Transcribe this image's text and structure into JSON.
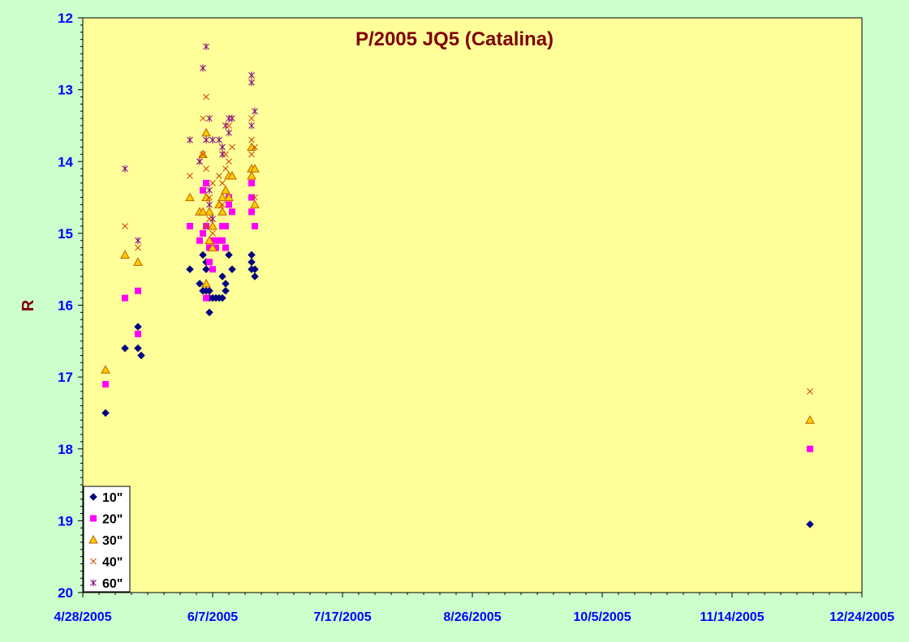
{
  "chart_data": {
    "type": "scatter",
    "title": "P/2005 JQ5 (Catalina)",
    "xlabel": "",
    "ylabel": "R",
    "x_is_date": true,
    "xlim": [
      "2005-04-28",
      "2005-12-24"
    ],
    "x_ticks": [
      "4/28/2005",
      "6/7/2005",
      "7/17/2005",
      "8/26/2005",
      "10/5/2005",
      "11/14/2005",
      "12/24/2005"
    ],
    "ylim": [
      20,
      12
    ],
    "y_inverted": true,
    "y_ticks": [
      "12",
      "13",
      "14",
      "15",
      "16",
      "17",
      "18",
      "19",
      "20"
    ],
    "grid": false,
    "legend_position": "bottom-left",
    "colors": {
      "background": "#ccffcc",
      "plot_area": "#ffff99",
      "title": "#800000",
      "axis_label": "#800000",
      "ticks": "#0000ff"
    },
    "series": [
      {
        "name": "10\"",
        "marker": "diamond",
        "color": "#000080",
        "points": [
          [
            "2005-05-05",
            17.5
          ],
          [
            "2005-05-11",
            16.6
          ],
          [
            "2005-05-15",
            16.3
          ],
          [
            "2005-05-15",
            16.6
          ],
          [
            "2005-05-16",
            16.7
          ],
          [
            "2005-05-31",
            15.5
          ],
          [
            "2005-06-03",
            15.7
          ],
          [
            "2005-06-04",
            15.3
          ],
          [
            "2005-06-04",
            15.8
          ],
          [
            "2005-06-05",
            15.4
          ],
          [
            "2005-06-05",
            15.5
          ],
          [
            "2005-06-05",
            15.8
          ],
          [
            "2005-06-06",
            15.9
          ],
          [
            "2005-06-06",
            15.8
          ],
          [
            "2005-06-06",
            16.1
          ],
          [
            "2005-06-07",
            15.9
          ],
          [
            "2005-06-08",
            15.9
          ],
          [
            "2005-06-09",
            15.9
          ],
          [
            "2005-06-10",
            15.9
          ],
          [
            "2005-06-10",
            15.6
          ],
          [
            "2005-06-11",
            15.7
          ],
          [
            "2005-06-11",
            15.8
          ],
          [
            "2005-06-12",
            15.3
          ],
          [
            "2005-06-13",
            15.5
          ],
          [
            "2005-06-19",
            15.3
          ],
          [
            "2005-06-19",
            15.4
          ],
          [
            "2005-06-19",
            15.5
          ],
          [
            "2005-06-20",
            15.5
          ],
          [
            "2005-06-20",
            15.6
          ],
          [
            "2005-12-08",
            19.05
          ]
        ]
      },
      {
        "name": "20\"",
        "marker": "square",
        "color": "#ff00ff",
        "points": [
          [
            "2005-05-05",
            17.1
          ],
          [
            "2005-05-11",
            15.9
          ],
          [
            "2005-05-15",
            15.8
          ],
          [
            "2005-05-15",
            16.4
          ],
          [
            "2005-05-31",
            14.9
          ],
          [
            "2005-06-03",
            15.1
          ],
          [
            "2005-06-04",
            14.4
          ],
          [
            "2005-06-04",
            15.0
          ],
          [
            "2005-06-05",
            14.3
          ],
          [
            "2005-06-05",
            14.9
          ],
          [
            "2005-06-05",
            15.9
          ],
          [
            "2005-06-06",
            15.2
          ],
          [
            "2005-06-06",
            15.4
          ],
          [
            "2005-06-07",
            15.5
          ],
          [
            "2005-06-07",
            15.1
          ],
          [
            "2005-06-08",
            15.2
          ],
          [
            "2005-06-09",
            15.1
          ],
          [
            "2005-06-10",
            15.1
          ],
          [
            "2005-06-10",
            14.9
          ],
          [
            "2005-06-11",
            15.2
          ],
          [
            "2005-06-11",
            14.9
          ],
          [
            "2005-06-12",
            14.5
          ],
          [
            "2005-06-12",
            14.6
          ],
          [
            "2005-06-13",
            14.7
          ],
          [
            "2005-06-19",
            14.3
          ],
          [
            "2005-06-19",
            14.5
          ],
          [
            "2005-06-19",
            14.7
          ],
          [
            "2005-06-20",
            14.9
          ],
          [
            "2005-12-08",
            18.0
          ]
        ]
      },
      {
        "name": "30\"",
        "marker": "triangle",
        "color": "#ffcc00",
        "stroke": "#c06000",
        "points": [
          [
            "2005-05-05",
            16.9
          ],
          [
            "2005-05-11",
            15.3
          ],
          [
            "2005-05-15",
            15.4
          ],
          [
            "2005-05-31",
            14.5
          ],
          [
            "2005-06-03",
            14.7
          ],
          [
            "2005-06-04",
            13.9
          ],
          [
            "2005-06-04",
            14.7
          ],
          [
            "2005-06-05",
            13.6
          ],
          [
            "2005-06-05",
            14.5
          ],
          [
            "2005-06-05",
            15.7
          ],
          [
            "2005-06-06",
            14.7
          ],
          [
            "2005-06-06",
            15.1
          ],
          [
            "2005-06-07",
            15.2
          ],
          [
            "2005-06-07",
            14.9
          ],
          [
            "2005-06-09",
            14.6
          ],
          [
            "2005-06-10",
            14.7
          ],
          [
            "2005-06-10",
            14.5
          ],
          [
            "2005-06-11",
            14.4
          ],
          [
            "2005-06-12",
            14.2
          ],
          [
            "2005-06-12",
            14.5
          ],
          [
            "2005-06-13",
            14.2
          ],
          [
            "2005-06-19",
            13.8
          ],
          [
            "2005-06-19",
            14.1
          ],
          [
            "2005-06-19",
            14.2
          ],
          [
            "2005-06-20",
            14.1
          ],
          [
            "2005-06-20",
            14.6
          ],
          [
            "2005-12-08",
            17.6
          ]
        ]
      },
      {
        "name": "40\"",
        "marker": "x",
        "color": "#cc4400",
        "points": [
          [
            "2005-05-11",
            14.9
          ],
          [
            "2005-05-15",
            15.2
          ],
          [
            "2005-05-31",
            14.2
          ],
          [
            "2005-06-03",
            14.0
          ],
          [
            "2005-06-04",
            13.4
          ],
          [
            "2005-06-04",
            13.9
          ],
          [
            "2005-06-05",
            13.1
          ],
          [
            "2005-06-05",
            14.1
          ],
          [
            "2005-06-05",
            14.9
          ],
          [
            "2005-06-06",
            14.5
          ],
          [
            "2005-06-06",
            14.8
          ],
          [
            "2005-06-07",
            15.0
          ],
          [
            "2005-06-07",
            14.3
          ],
          [
            "2005-06-09",
            14.2
          ],
          [
            "2005-06-10",
            14.3
          ],
          [
            "2005-06-10",
            14.6
          ],
          [
            "2005-06-11",
            14.1
          ],
          [
            "2005-06-11",
            13.9
          ],
          [
            "2005-06-12",
            13.5
          ],
          [
            "2005-06-12",
            14.0
          ],
          [
            "2005-06-13",
            13.8
          ],
          [
            "2005-06-19",
            13.4
          ],
          [
            "2005-06-19",
            13.7
          ],
          [
            "2005-06-19",
            13.9
          ],
          [
            "2005-06-20",
            13.8
          ],
          [
            "2005-06-20",
            14.5
          ],
          [
            "2005-12-08",
            17.2
          ]
        ]
      },
      {
        "name": "60\"",
        "marker": "star",
        "color": "#800080",
        "points": [
          [
            "2005-05-11",
            14.1
          ],
          [
            "2005-05-15",
            15.1
          ],
          [
            "2005-05-31",
            13.7
          ],
          [
            "2005-06-03",
            14.0
          ],
          [
            "2005-06-04",
            12.7
          ],
          [
            "2005-06-05",
            12.4
          ],
          [
            "2005-06-05",
            13.7
          ],
          [
            "2005-06-06",
            13.4
          ],
          [
            "2005-06-06",
            14.4
          ],
          [
            "2005-06-06",
            14.6
          ],
          [
            "2005-06-07",
            13.7
          ],
          [
            "2005-06-07",
            14.8
          ],
          [
            "2005-06-09",
            13.7
          ],
          [
            "2005-06-10",
            13.9
          ],
          [
            "2005-06-10",
            13.8
          ],
          [
            "2005-06-11",
            13.5
          ],
          [
            "2005-06-12",
            13.4
          ],
          [
            "2005-06-12",
            13.6
          ],
          [
            "2005-06-13",
            13.4
          ],
          [
            "2005-06-19",
            12.8
          ],
          [
            "2005-06-19",
            12.9
          ],
          [
            "2005-06-19",
            13.5
          ],
          [
            "2005-06-20",
            13.3
          ]
        ]
      }
    ]
  }
}
